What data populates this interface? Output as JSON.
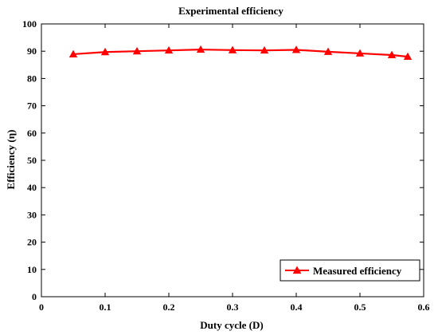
{
  "chart_data": {
    "type": "line",
    "title": "Experimental efficiency",
    "xlabel": "Duty cycle (D)",
    "ylabel": "Efficiency (η)",
    "xlim": [
      0,
      0.6
    ],
    "ylim": [
      0,
      100
    ],
    "xticks": [
      "0",
      "0.1",
      "0.2",
      "0.3",
      "0.4",
      "0.5",
      "0.6"
    ],
    "yticks": [
      "0",
      "10",
      "20",
      "30",
      "40",
      "50",
      "60",
      "70",
      "80",
      "90",
      "100"
    ],
    "grid": false,
    "legend_position": "bottom-right",
    "series": [
      {
        "name": "Measured efficiency",
        "color": "#ff0000",
        "marker": "triangle",
        "x": [
          0.05,
          0.1,
          0.15,
          0.2,
          0.25,
          0.3,
          0.35,
          0.4,
          0.45,
          0.5,
          0.55,
          0.575
        ],
        "y": [
          88.9,
          89.7,
          90.0,
          90.3,
          90.6,
          90.4,
          90.3,
          90.5,
          89.8,
          89.2,
          88.6,
          88.0
        ]
      }
    ]
  }
}
